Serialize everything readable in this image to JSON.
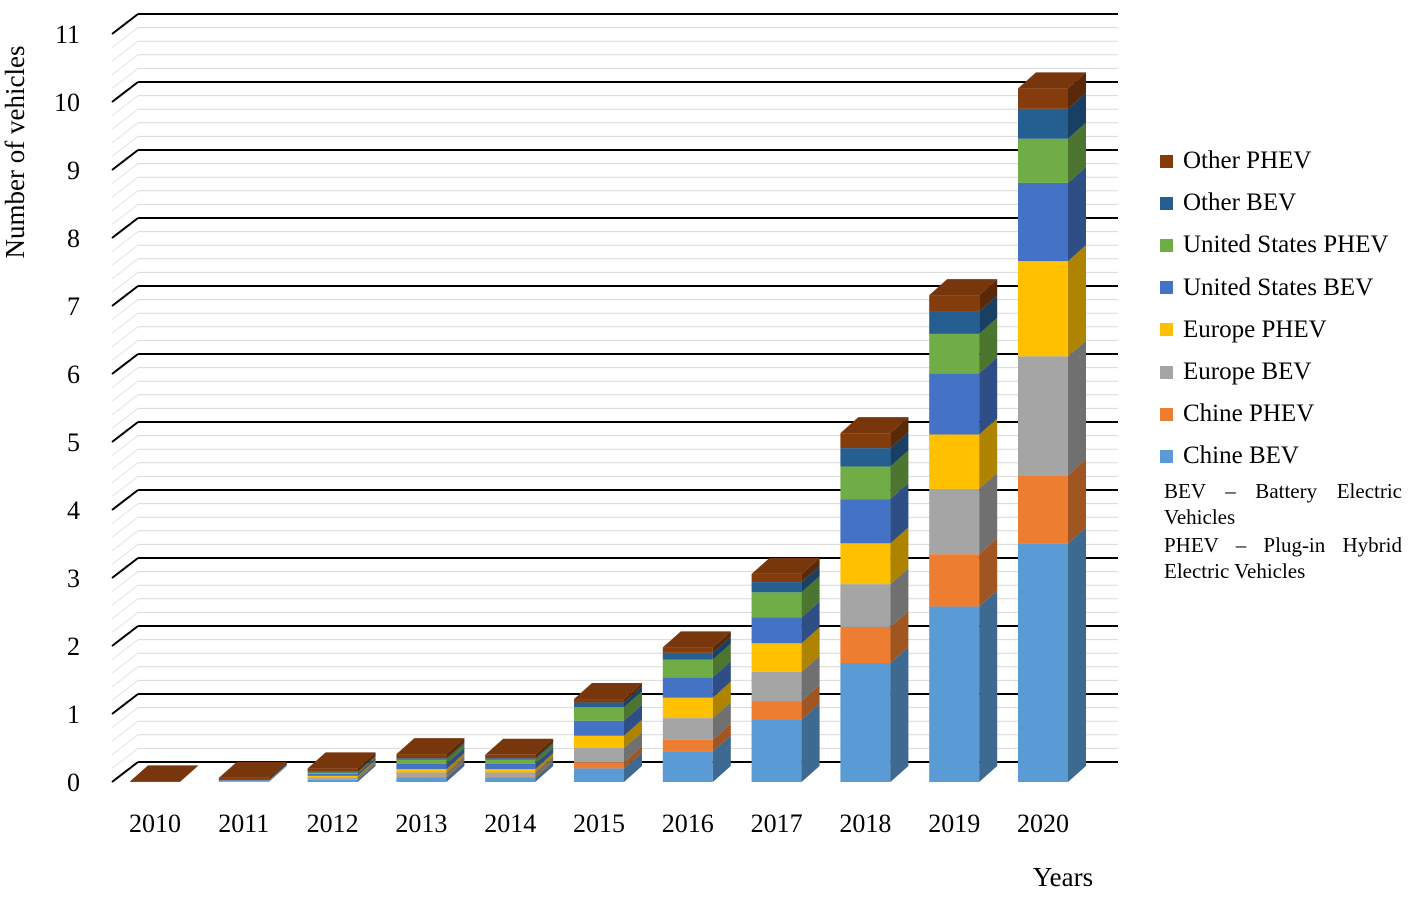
{
  "chart_data": {
    "type": "bar",
    "stacked": true,
    "style": "3d-stacked-column",
    "ylabel": "Number of vehicles",
    "xlabel": "Years",
    "ylim": [
      0,
      11
    ],
    "yticks": [
      "0",
      "1",
      "2",
      "3",
      "4",
      "5",
      "6",
      "7",
      "8",
      "9",
      "10",
      "11"
    ],
    "grid": true,
    "legend_position": "right",
    "categories": [
      "2010",
      "2011",
      "2012",
      "2013",
      "2014",
      "2015",
      "2016",
      "2017",
      "2018",
      "2019",
      "2020"
    ],
    "series": [
      {
        "name": "Chine BEV",
        "color": "#5b9bd5",
        "values": [
          0.0,
          0.01,
          0.03,
          0.06,
          0.06,
          0.2,
          0.45,
          0.92,
          1.75,
          2.58,
          3.51
        ]
      },
      {
        "name": "Chine PHEV",
        "color": "#ed7d31",
        "values": [
          0.0,
          0.0,
          0.01,
          0.02,
          0.02,
          0.09,
          0.17,
          0.27,
          0.53,
          0.77,
          1.0
        ]
      },
      {
        "name": "Europe BEV",
        "color": "#a5a5a5",
        "values": [
          0.0,
          0.01,
          0.03,
          0.06,
          0.06,
          0.21,
          0.32,
          0.43,
          0.63,
          0.96,
          1.75
        ]
      },
      {
        "name": "Europe PHEV",
        "color": "#ffc000",
        "values": [
          0.0,
          0.0,
          0.02,
          0.05,
          0.05,
          0.18,
          0.3,
          0.42,
          0.6,
          0.8,
          1.4
        ]
      },
      {
        "name": "United States BEV",
        "color": "#4472c4",
        "values": [
          0.0,
          0.01,
          0.03,
          0.08,
          0.08,
          0.22,
          0.3,
          0.38,
          0.65,
          0.9,
          1.15
        ]
      },
      {
        "name": "United States PHEV",
        "color": "#70ad47",
        "values": [
          0.0,
          0.0,
          0.02,
          0.06,
          0.06,
          0.2,
          0.26,
          0.37,
          0.48,
          0.58,
          0.65
        ]
      },
      {
        "name": "Other BEV",
        "color": "#255e91",
        "values": [
          0.0,
          0.0,
          0.01,
          0.02,
          0.02,
          0.07,
          0.1,
          0.15,
          0.27,
          0.33,
          0.44
        ]
      },
      {
        "name": "Other PHEV",
        "color": "#843c0c",
        "values": [
          0.01,
          0.03,
          0.05,
          0.06,
          0.05,
          0.05,
          0.08,
          0.12,
          0.22,
          0.24,
          0.3
        ]
      }
    ],
    "legend_notes": [
      "BEV – Battery Electric Vehicles",
      "PHEV – Plug-in Hybrid Electric Vehicles"
    ]
  }
}
